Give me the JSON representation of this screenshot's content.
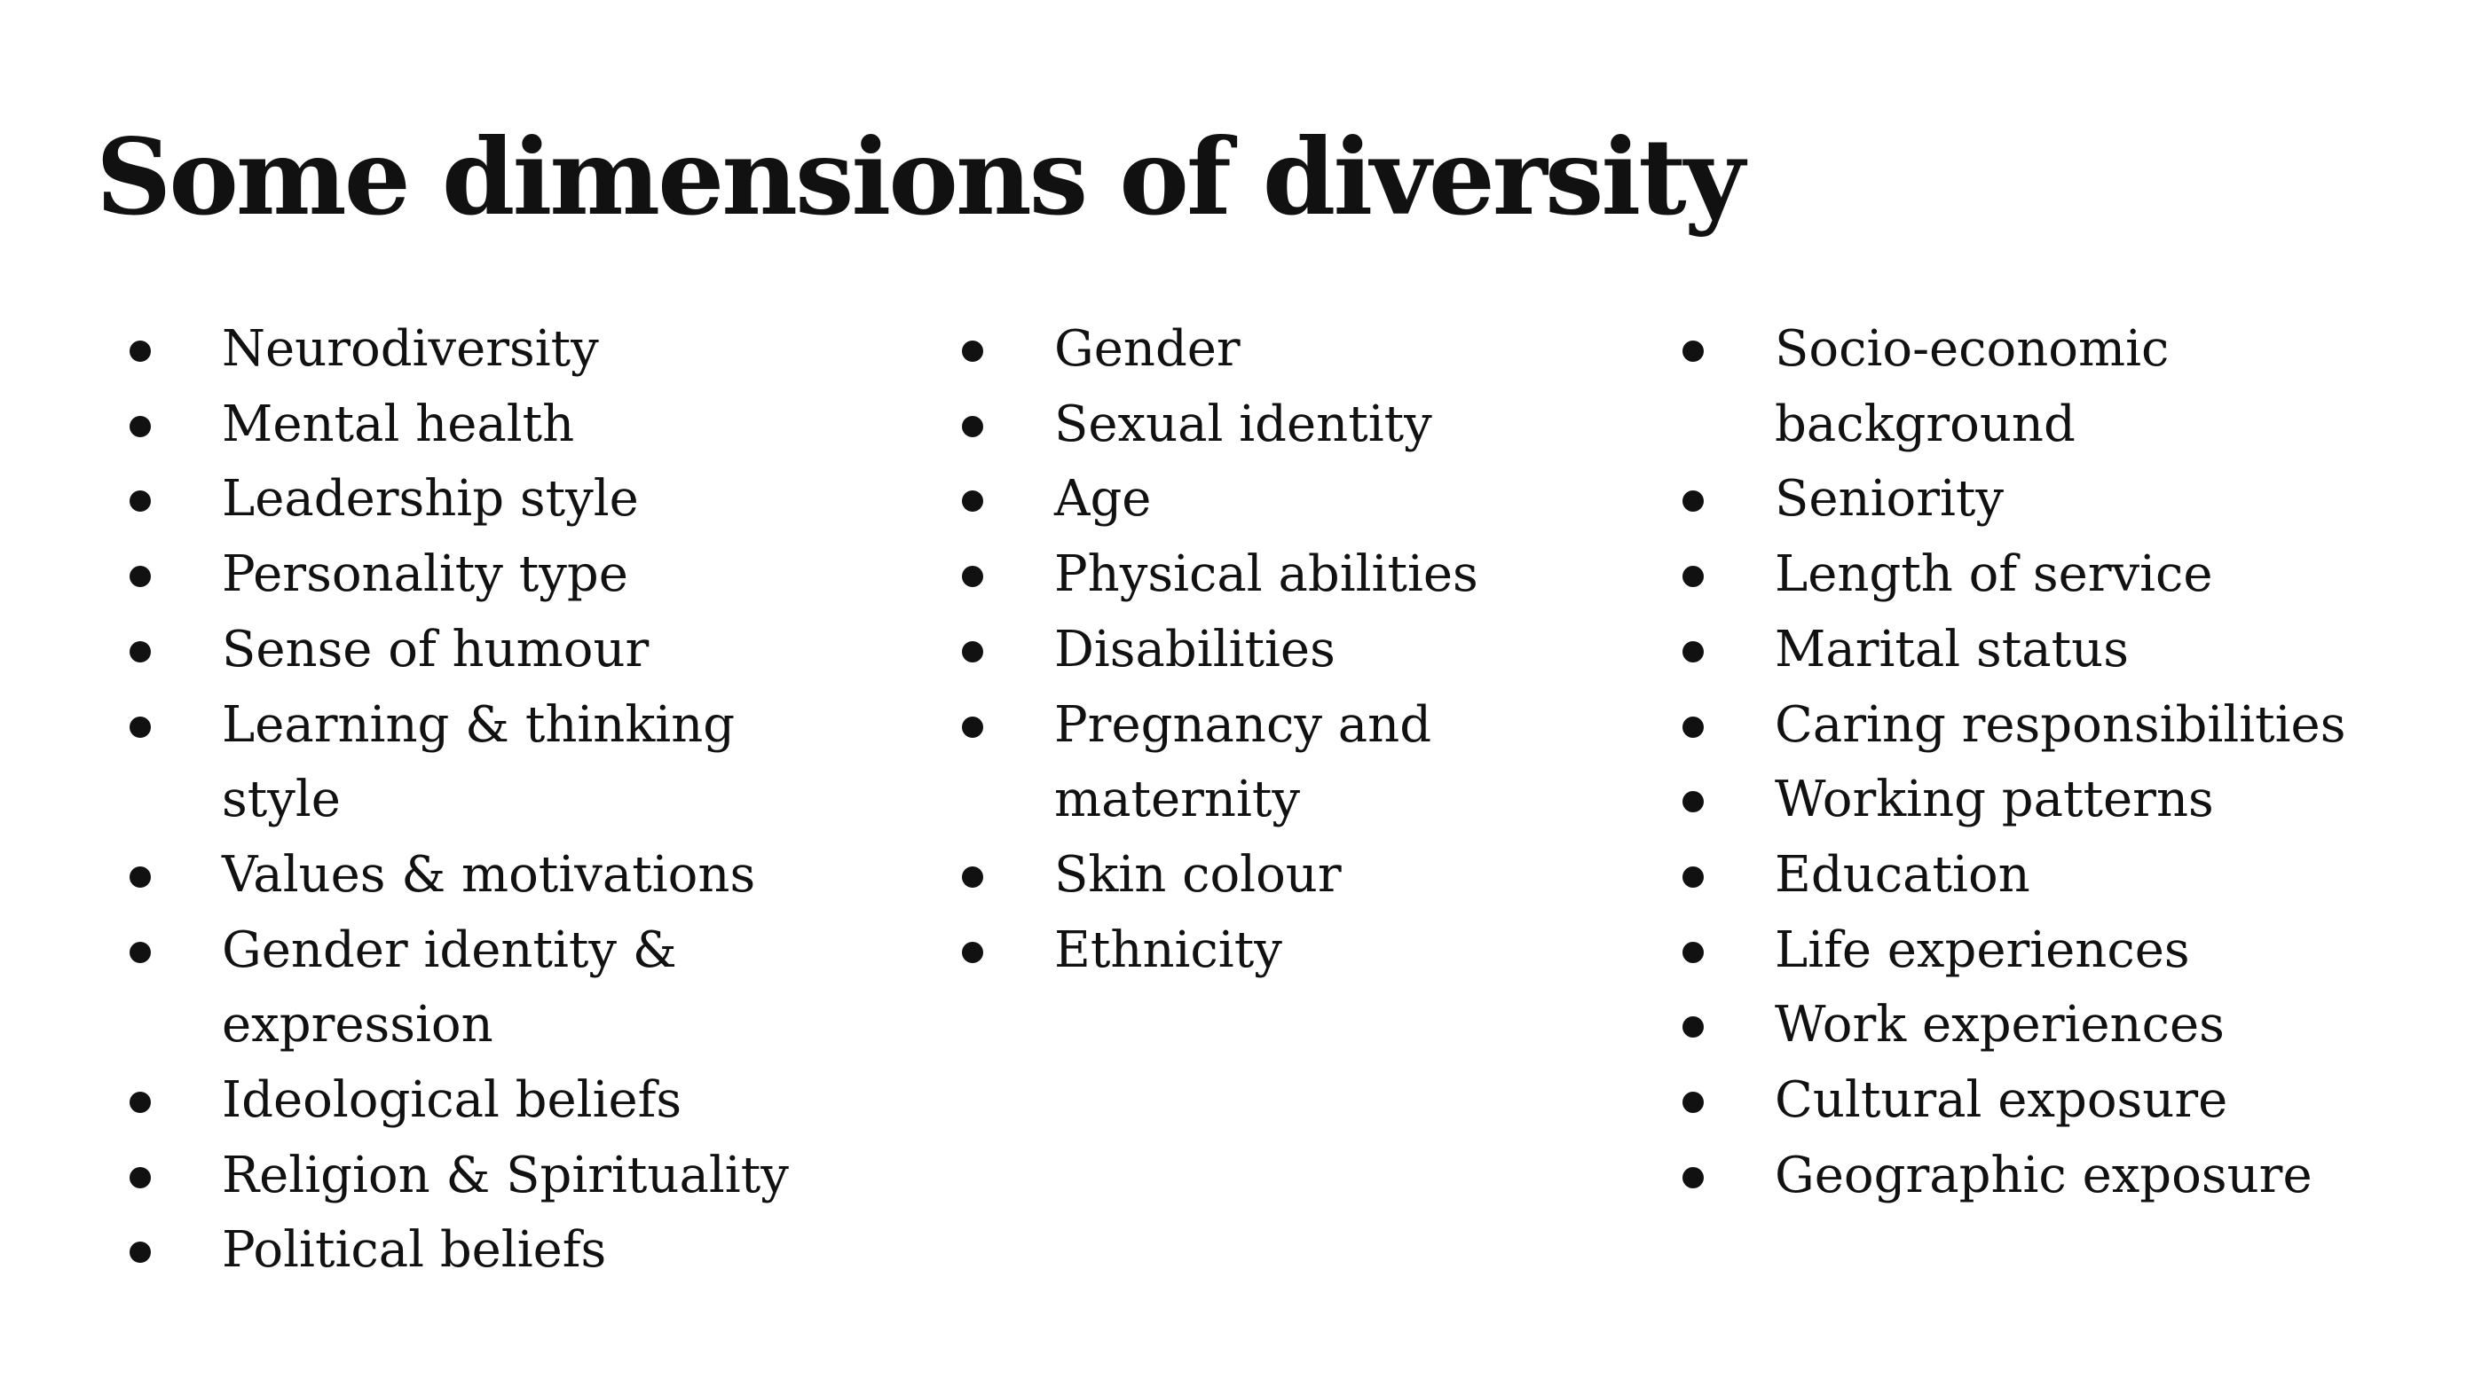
{
  "title": "Some dimensions of diversity",
  "columns": [
    {
      "items": [
        "Neurodiversity",
        "Mental health",
        "Leadership style",
        "Personality type",
        "Sense of humour",
        "Learning & thinking style",
        "Values & motivations",
        "Gender identity & expression",
        "Ideological beliefs",
        "Religion & Spirituality",
        "Political beliefs"
      ]
    },
    {
      "items": [
        "Gender",
        "Sexual identity",
        "Age",
        "Physical abilities",
        "Disabilities",
        "Pregnancy and maternity",
        "Skin colour",
        "Ethnicity"
      ]
    },
    {
      "items": [
        "Socio-economic background",
        "Seniority",
        "Length of service",
        "Marital status",
        "Caring responsibilities",
        "Working patterns",
        "Education",
        "Life experiences",
        "Work experiences",
        "Cultural exposure",
        "Geographic exposure"
      ]
    }
  ]
}
